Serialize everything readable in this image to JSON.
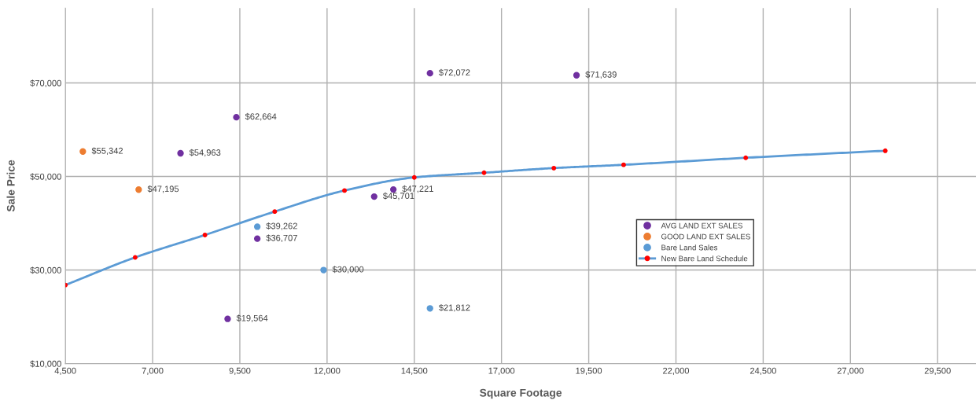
{
  "chart_data": {
    "type": "scatter",
    "xlabel": "Square Footage",
    "ylabel": "Sale Price",
    "xlim": [
      4500,
      30600
    ],
    "ylim": [
      10000,
      86000
    ],
    "xticks": [
      {
        "value": 4500,
        "label": "4,500"
      },
      {
        "value": 7000,
        "label": "7,000"
      },
      {
        "value": 9500,
        "label": "9,500"
      },
      {
        "value": 12000,
        "label": "12,000"
      },
      {
        "value": 14500,
        "label": "14,500"
      },
      {
        "value": 17000,
        "label": "17,000"
      },
      {
        "value": 19500,
        "label": "19,500"
      },
      {
        "value": 22000,
        "label": "22,000"
      },
      {
        "value": 24500,
        "label": "24,500"
      },
      {
        "value": 27000,
        "label": "27,000"
      },
      {
        "value": 29500,
        "label": "29,500"
      }
    ],
    "yticks": [
      {
        "value": 10000,
        "label": "$10,000"
      },
      {
        "value": 30000,
        "label": "$30,000"
      },
      {
        "value": 50000,
        "label": "$50,000"
      },
      {
        "value": 70000,
        "label": "$70,000"
      }
    ],
    "grid": true,
    "legend": "right",
    "marker": "circle",
    "series": [
      {
        "name": "AVG LAND EXT SALES",
        "color": "#7030a0",
        "x": [
          14950,
          19150,
          9400,
          7800,
          13900,
          13350,
          10000,
          9150
        ],
        "values": [
          72072,
          71639,
          62664,
          54963,
          47221,
          45701,
          36707,
          19564
        ],
        "value_labels": [
          "$72,072",
          "$71,639",
          "$62,664",
          "$54,963",
          "$47,221",
          "$45,701",
          "$36,707",
          "$19,564"
        ]
      },
      {
        "name": "GOOD LAND EXT SALES",
        "color": "#ed7d31",
        "x": [
          5000,
          6600
        ],
        "values": [
          55342,
          47195
        ],
        "value_labels": [
          "$55,342",
          "$47,195"
        ]
      },
      {
        "name": "Bare Land Sales",
        "color": "#5b9bd5",
        "x": [
          10000,
          11900,
          14950
        ],
        "values": [
          39262,
          30000,
          21812
        ],
        "value_labels": [
          "$39,262",
          "$30,000",
          "$21,812"
        ]
      },
      {
        "name": "New Bare Land Schedule",
        "type": "line",
        "color": "#5b9bd5",
        "colors": [
          "#ff0000",
          "#ff0000",
          "#ff0000",
          "#ff0000",
          "#ff0000",
          "#ff0000",
          "#ff0000",
          "#ff0000",
          "#ff0000",
          "#ff0000",
          "#ff0000"
        ],
        "x": [
          4500,
          6500,
          8500,
          10500,
          12500,
          14500,
          16500,
          18500,
          20500,
          24000,
          28000
        ],
        "values": [
          26800,
          32700,
          37500,
          42500,
          47000,
          49800,
          50800,
          51800,
          52500,
          54000,
          55500
        ]
      }
    ]
  }
}
